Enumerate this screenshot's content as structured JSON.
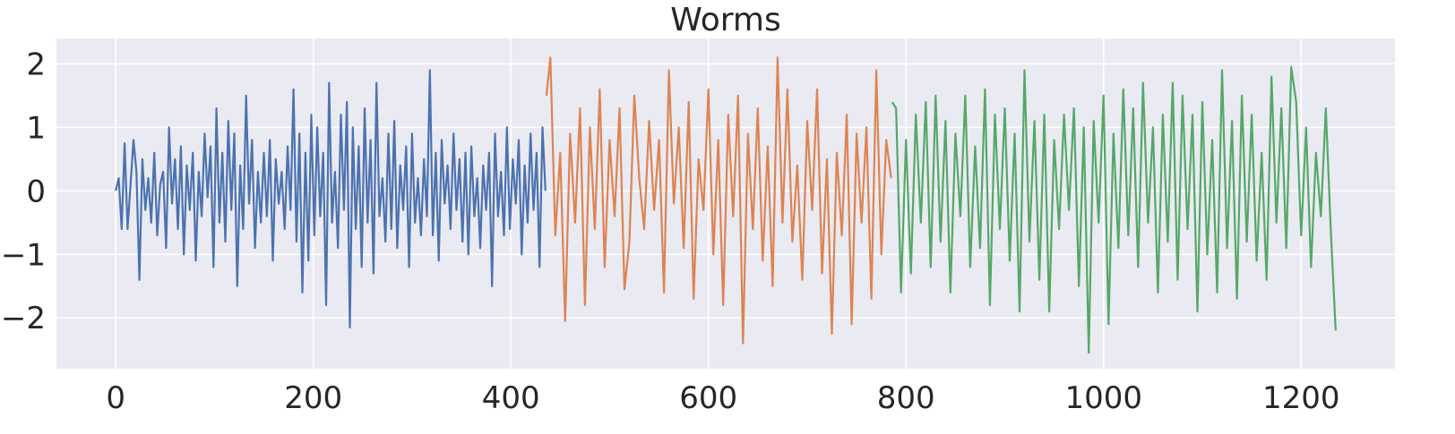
{
  "chart_data": {
    "type": "line",
    "title": "Worms",
    "xlabel": "",
    "ylabel": "",
    "xlim": [
      -60,
      1295
    ],
    "ylim": [
      -2.8,
      2.4
    ],
    "xticks": [
      0,
      200,
      400,
      600,
      800,
      1000,
      1200
    ],
    "yticks": [
      2,
      1,
      0,
      -1,
      -2
    ],
    "xtick_labels": [
      "0",
      "200",
      "400",
      "600",
      "800",
      "1000",
      "1200"
    ],
    "ytick_labels": [
      "2",
      "1",
      "0",
      "−1",
      "−2"
    ],
    "grid": true,
    "legend": "none",
    "background": "#eaeaf2",
    "series": [
      {
        "color": "#4c72b0",
        "x": [
          0,
          3,
          6,
          9,
          12,
          15,
          18,
          21,
          24,
          27,
          30,
          33,
          36,
          39,
          42,
          45,
          48,
          51,
          54,
          57,
          60,
          63,
          66,
          69,
          72,
          75,
          78,
          81,
          84,
          87,
          90,
          93,
          96,
          99,
          102,
          105,
          108,
          111,
          114,
          117,
          120,
          123,
          126,
          129,
          132,
          135,
          138,
          141,
          144,
          147,
          150,
          153,
          156,
          159,
          162,
          165,
          168,
          171,
          174,
          177,
          180,
          183,
          186,
          189,
          192,
          195,
          198,
          201,
          204,
          207,
          210,
          213,
          216,
          219,
          222,
          225,
          228,
          231,
          234,
          237,
          240,
          243,
          246,
          249,
          252,
          255,
          258,
          261,
          264,
          267,
          270,
          273,
          276,
          279,
          282,
          285,
          288,
          291,
          294,
          297,
          300,
          303,
          306,
          309,
          312,
          315,
          318,
          321,
          324,
          327,
          330,
          333,
          336,
          339,
          342,
          345,
          348,
          351,
          354,
          357,
          360,
          363,
          366,
          369,
          372,
          375,
          378,
          381,
          384,
          387,
          390,
          393,
          396,
          399,
          402,
          405,
          408,
          411,
          414,
          417,
          420,
          423,
          426,
          429,
          432,
          435
        ],
        "y": [
          0.0,
          0.2,
          -0.6,
          0.75,
          -0.6,
          0.1,
          0.8,
          0.3,
          -1.4,
          0.5,
          -0.3,
          0.2,
          -0.5,
          0.6,
          -0.7,
          0.1,
          0.3,
          -0.9,
          1.0,
          -0.2,
          0.5,
          -0.6,
          0.7,
          -1.0,
          0.4,
          -0.3,
          0.6,
          -1.1,
          0.3,
          -0.4,
          0.9,
          -0.1,
          0.7,
          -1.2,
          1.3,
          -0.5,
          0.6,
          -0.8,
          1.1,
          -0.3,
          0.9,
          -1.5,
          0.4,
          -0.6,
          1.5,
          -0.2,
          0.8,
          -0.9,
          0.3,
          -0.5,
          0.6,
          -0.4,
          0.8,
          -1.1,
          0.5,
          -0.2,
          0.3,
          -0.6,
          0.7,
          -0.3,
          1.6,
          -0.8,
          0.9,
          -1.6,
          0.6,
          -1.1,
          1.2,
          -0.7,
          1.0,
          -0.4,
          0.6,
          -1.8,
          1.7,
          -0.5,
          0.3,
          -0.9,
          1.2,
          -0.3,
          1.4,
          -2.15,
          1.0,
          -0.6,
          0.7,
          -1.2,
          1.3,
          -0.5,
          0.8,
          -1.3,
          1.7,
          -0.4,
          0.2,
          -0.8,
          0.9,
          -0.6,
          1.1,
          -0.9,
          0.4,
          -0.3,
          0.7,
          -1.2,
          0.9,
          -0.5,
          0.2,
          -0.7,
          0.5,
          -0.4,
          1.9,
          -0.7,
          0.6,
          -1.1,
          0.8,
          -0.2,
          0.4,
          -0.6,
          0.9,
          -0.3,
          0.5,
          -0.8,
          0.6,
          -1.0,
          0.7,
          -0.4,
          0.2,
          -0.9,
          0.4,
          -0.3,
          0.6,
          -1.5,
          0.9,
          -0.4,
          0.3,
          -0.7,
          1.0,
          -0.6,
          0.5,
          -0.2,
          0.8,
          -1.0,
          0.4,
          -0.5,
          0.9,
          -0.3,
          0.6,
          -1.2,
          1.0,
          0.0
        ]
      },
      {
        "color": "#dd8452",
        "x": [
          436,
          440,
          445,
          450,
          455,
          460,
          465,
          470,
          475,
          480,
          485,
          490,
          495,
          500,
          505,
          510,
          515,
          520,
          525,
          530,
          535,
          540,
          545,
          550,
          555,
          560,
          565,
          570,
          575,
          580,
          585,
          590,
          595,
          600,
          605,
          610,
          615,
          620,
          625,
          630,
          635,
          640,
          645,
          650,
          655,
          660,
          665,
          670,
          675,
          680,
          685,
          690,
          695,
          700,
          705,
          710,
          715,
          720,
          725,
          730,
          735,
          740,
          745,
          750,
          755,
          760,
          765,
          770,
          775,
          780,
          785
        ],
        "y": [
          1.5,
          2.1,
          -0.7,
          0.6,
          -2.05,
          0.9,
          -0.5,
          1.3,
          -1.8,
          1.0,
          -0.6,
          1.6,
          -1.2,
          0.8,
          -0.4,
          1.3,
          -1.55,
          -0.8,
          1.5,
          0.2,
          -0.6,
          1.1,
          -0.3,
          0.8,
          -1.6,
          1.9,
          -0.2,
          1.0,
          -0.9,
          1.4,
          -1.7,
          0.5,
          -0.3,
          1.6,
          -1.0,
          0.8,
          -1.8,
          1.2,
          -0.4,
          1.5,
          -2.4,
          0.9,
          -0.6,
          1.3,
          -1.1,
          0.7,
          -1.5,
          2.1,
          -0.5,
          1.6,
          -0.8,
          0.4,
          -1.4,
          1.1,
          -0.3,
          1.6,
          -1.3,
          0.5,
          -2.25,
          0.6,
          -0.7,
          1.2,
          -2.1,
          0.9,
          -0.5,
          1.0,
          -1.7,
          1.9,
          -1.0,
          0.8,
          0.2
        ]
      },
      {
        "color": "#55a868",
        "x": [
          786,
          790,
          795,
          800,
          805,
          810,
          815,
          820,
          825,
          830,
          835,
          840,
          845,
          850,
          855,
          860,
          865,
          870,
          875,
          880,
          885,
          890,
          895,
          900,
          905,
          910,
          915,
          920,
          925,
          930,
          935,
          940,
          945,
          950,
          955,
          960,
          965,
          970,
          975,
          980,
          985,
          990,
          995,
          1000,
          1005,
          1010,
          1015,
          1020,
          1025,
          1030,
          1035,
          1040,
          1045,
          1050,
          1055,
          1060,
          1065,
          1070,
          1075,
          1080,
          1085,
          1090,
          1095,
          1100,
          1105,
          1110,
          1115,
          1120,
          1125,
          1130,
          1135,
          1140,
          1145,
          1150,
          1155,
          1160,
          1165,
          1170,
          1175,
          1180,
          1185,
          1190,
          1195,
          1200,
          1205,
          1210,
          1215,
          1220,
          1225,
          1230,
          1235
        ],
        "y": [
          1.4,
          1.3,
          -1.6,
          0.8,
          -1.3,
          1.2,
          -0.5,
          1.4,
          -1.2,
          1.5,
          -0.8,
          1.1,
          -1.6,
          0.9,
          -0.4,
          1.5,
          -1.2,
          0.7,
          -0.9,
          1.6,
          -1.8,
          1.2,
          -0.6,
          1.3,
          -1.1,
          0.9,
          -1.9,
          1.9,
          -0.8,
          1.1,
          -1.4,
          1.2,
          -1.9,
          0.8,
          -0.6,
          1.2,
          -0.3,
          1.3,
          -1.5,
          1.0,
          -2.55,
          1.1,
          -0.5,
          1.5,
          -2.1,
          0.9,
          -0.9,
          1.6,
          -0.7,
          1.3,
          -1.2,
          1.7,
          -0.5,
          1.0,
          -1.6,
          1.2,
          -0.8,
          1.7,
          -1.4,
          1.5,
          -0.6,
          1.2,
          -1.9,
          1.4,
          -1.0,
          0.8,
          -1.6,
          1.9,
          -0.9,
          1.1,
          -1.7,
          1.5,
          -0.8,
          1.2,
          -1.1,
          0.6,
          -1.4,
          1.8,
          -0.5,
          1.3,
          -0.9,
          1.95,
          1.4,
          -0.7,
          1.0,
          -1.2,
          0.6,
          -0.4,
          1.3,
          -0.6,
          -2.2
        ]
      }
    ]
  }
}
